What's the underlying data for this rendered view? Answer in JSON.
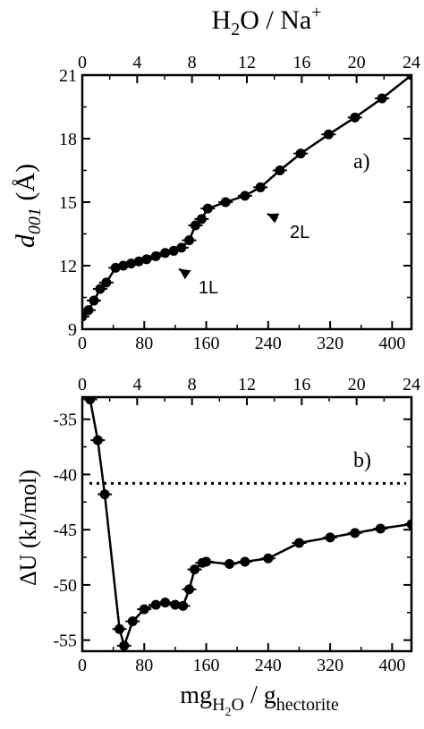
{
  "chart_data": [
    {
      "id": "a",
      "type": "line",
      "panel_label": "a)",
      "ylabel_main": "d",
      "ylabel_sub": "001",
      "ylabel_unit": " (Å)",
      "ylim": [
        9,
        21
      ],
      "yticks": [
        9,
        12,
        15,
        18,
        21
      ],
      "xlim": [
        0,
        425
      ],
      "xticks": [
        0,
        80,
        160,
        240,
        320,
        400
      ],
      "top_xlim": [
        0,
        24
      ],
      "top_xticks": [
        0,
        4,
        8,
        12,
        16,
        20,
        24
      ],
      "top_xlabel_base": "H",
      "top_xlabel_sub": "2",
      "top_xlabel_mid": "O / Na",
      "top_xlabel_sup": "+",
      "series": [
        {
          "x": [
            0,
            8,
            15,
            23,
            31,
            43,
            53,
            63,
            73,
            83,
            95,
            107,
            118,
            128,
            138,
            146,
            154,
            162,
            185,
            210,
            230,
            255,
            282,
            318,
            352,
            387,
            425
          ],
          "y": [
            9.6,
            9.9,
            10.35,
            10.9,
            11.2,
            11.9,
            12.0,
            12.1,
            12.2,
            12.3,
            12.45,
            12.6,
            12.7,
            12.85,
            13.2,
            13.9,
            14.2,
            14.7,
            15.0,
            15.3,
            15.7,
            16.5,
            17.3,
            18.2,
            19.0,
            19.9,
            21.0
          ],
          "markers": true
        }
      ],
      "annotations": [
        {
          "text": "2L",
          "x": 232,
          "y": 14.7,
          "label_x": 268,
          "label_y": 13.3
        },
        {
          "text": "1L",
          "x": 118,
          "y": 12.1,
          "label_x": 150,
          "label_y": 10.7
        }
      ]
    },
    {
      "id": "b",
      "type": "line",
      "panel_label": "b)",
      "ylabel_main": "ΔU (kJ/mol)",
      "ylim": [
        -56,
        -33
      ],
      "yticks": [
        -55,
        -50,
        -45,
        -40,
        -35
      ],
      "xlim": [
        0,
        425
      ],
      "xticks": [
        0,
        80,
        160,
        240,
        320,
        400
      ],
      "top_xlim": [
        0,
        24
      ],
      "top_xticks": [
        0,
        4,
        8,
        12,
        16,
        20,
        24
      ],
      "xlabel_base": "mg",
      "xlabel_sub1": "H",
      "xlabel_sub2": "2",
      "xlabel_sub3": "O",
      "xlabel_mid": " / g",
      "xlabel_sub4": "hectorite",
      "reference_line": -40.8,
      "series": [
        {
          "x": [
            10,
            20,
            29,
            48,
            54,
            65,
            80,
            95,
            107,
            120,
            130,
            138,
            145,
            155,
            160,
            190,
            210,
            240,
            280,
            320,
            352,
            385,
            425
          ],
          "y": [
            -33.2,
            -36.9,
            -41.8,
            -54.0,
            -55.5,
            -53.3,
            -52.2,
            -51.8,
            -51.6,
            -51.8,
            -51.9,
            -50.4,
            -48.6,
            -48.0,
            -47.9,
            -48.1,
            -47.9,
            -47.6,
            -46.2,
            -45.7,
            -45.3,
            -44.9,
            -44.5
          ],
          "markers": true
        }
      ]
    }
  ]
}
